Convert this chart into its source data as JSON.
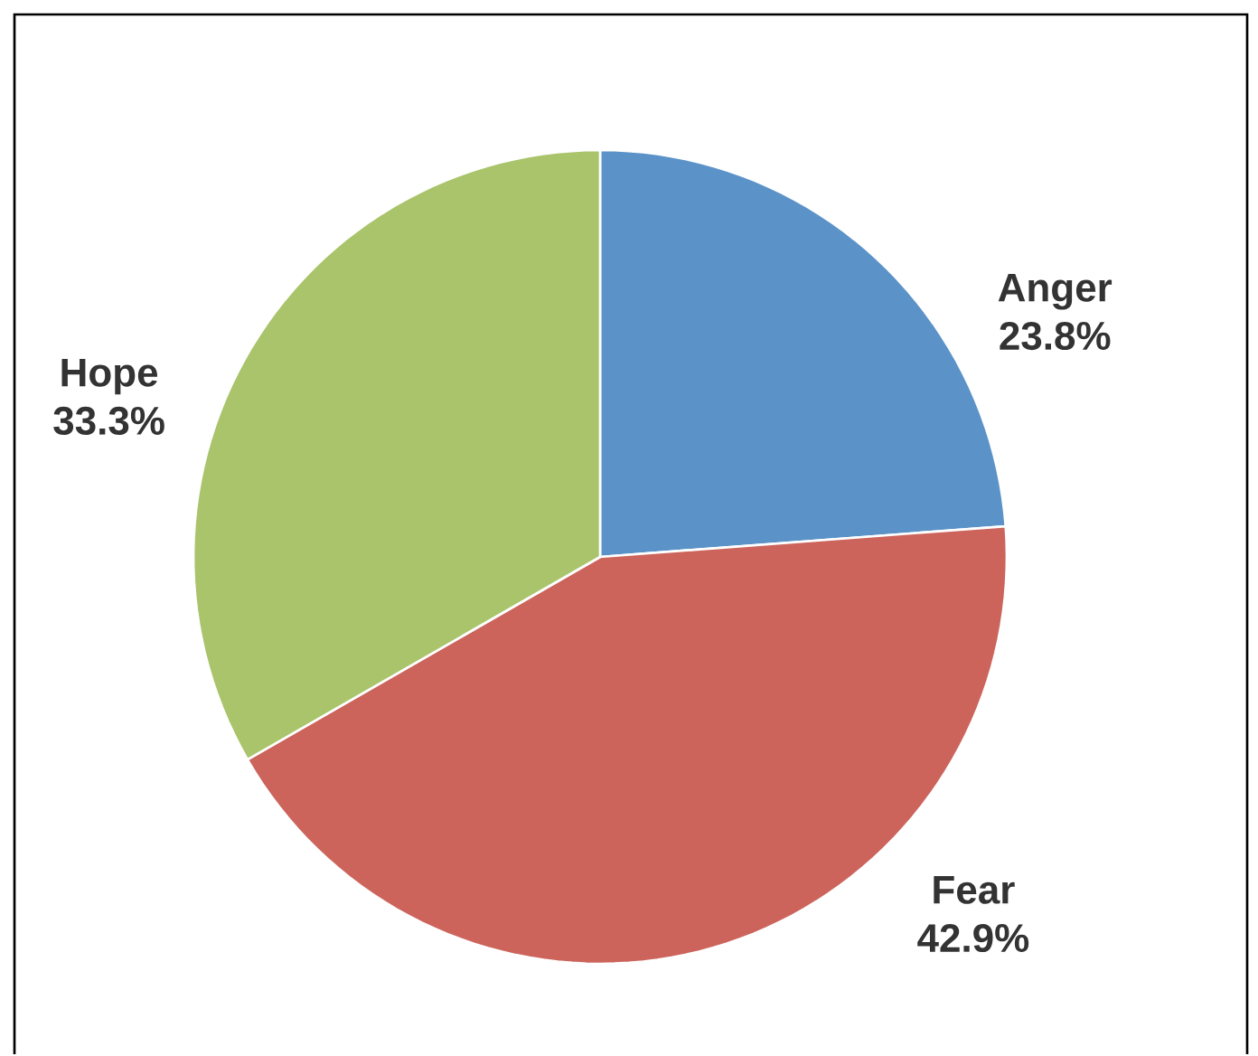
{
  "chart_data": {
    "type": "pie",
    "categories": [
      "Anger",
      "Fear",
      "Hope"
    ],
    "values": [
      23.8,
      42.9,
      33.3
    ],
    "colors": [
      "#5b93c8",
      "#cc645c",
      "#a9c46b"
    ],
    "value_labels": [
      "23.8%",
      "42.9%",
      "33.3%"
    ]
  }
}
